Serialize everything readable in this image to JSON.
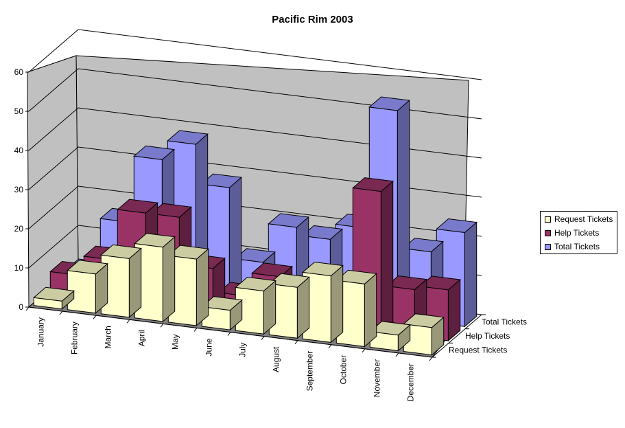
{
  "chart_data": {
    "type": "bar",
    "title": "Pacific Rim 2003",
    "categories": [
      "January",
      "February",
      "March",
      "April",
      "May",
      "June",
      "July",
      "August",
      "September",
      "October",
      "November",
      "December"
    ],
    "series": [
      {
        "name": "Request Tickets",
        "color": "#ffffcc",
        "values": [
          2,
          10,
          15,
          19,
          17,
          5,
          11,
          13,
          17,
          16,
          4,
          7
        ]
      },
      {
        "name": "Help Tickets",
        "color": "#993366",
        "values": [
          5,
          10,
          23,
          23,
          11,
          5,
          11,
          7,
          3,
          36,
          12,
          13
        ]
      },
      {
        "name": "Total Tickets",
        "color": "#9999ff",
        "values": [
          2,
          16,
          33,
          38,
          28,
          10,
          20,
          18,
          22,
          53,
          18,
          24
        ]
      }
    ],
    "ylim": [
      0,
      60
    ],
    "yticks": [
      0,
      10,
      20,
      30,
      40,
      50,
      60
    ],
    "grid": true,
    "legend": "right"
  }
}
